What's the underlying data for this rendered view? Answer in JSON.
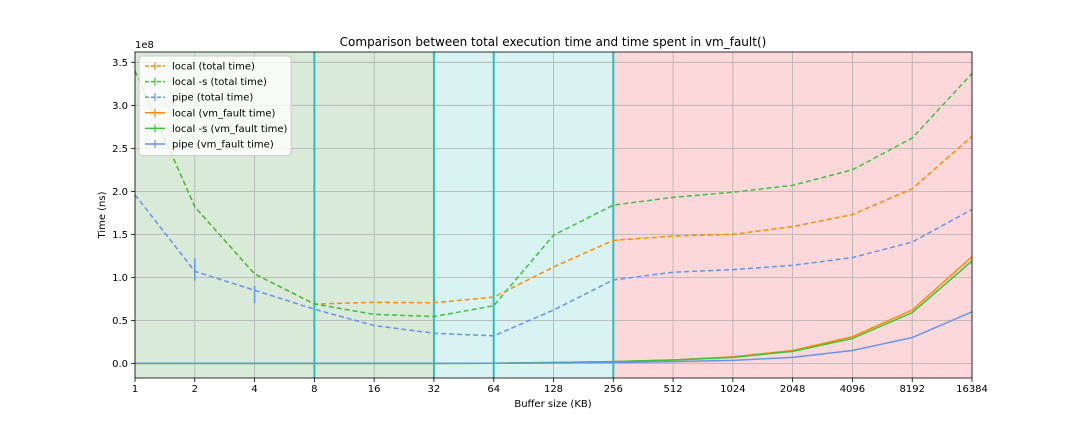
{
  "chart_data": {
    "type": "line",
    "title": "Comparison between total execution time and time spent in vm_fault()",
    "xlabel": "Buffer size (KB)",
    "ylabel": "Time (ns)",
    "y_scale_note": "1e8",
    "x_scale": "log2",
    "x": [
      1,
      2,
      4,
      8,
      16,
      32,
      64,
      128,
      256,
      512,
      1024,
      2048,
      4096,
      8192,
      16384
    ],
    "x_tick_labels": [
      "1",
      "2",
      "4",
      "8",
      "16",
      "32",
      "64",
      "128",
      "256",
      "512",
      "1024",
      "2048",
      "4096",
      "8192",
      "16384"
    ],
    "xlim": [
      1,
      16384
    ],
    "ylim": [
      -17000000,
      362000000
    ],
    "y_ticks": [
      0,
      50000000,
      100000000,
      150000000,
      200000000,
      250000000,
      300000000,
      350000000
    ],
    "y_tick_labels": [
      "0.0",
      "0.5",
      "1.0",
      "1.5",
      "2.0",
      "2.5",
      "3.0",
      "3.5"
    ],
    "grid": true,
    "legend_position": "top-left",
    "regions": [
      {
        "x_start": 1,
        "x_end": 32,
        "color": "#d9ead9"
      },
      {
        "x_start": 32,
        "x_end": 256,
        "color": "#d9f3f3"
      },
      {
        "x_start": 256,
        "x_end": 16384,
        "color": "#fdd8da"
      }
    ],
    "vertical_lines": [
      8,
      32,
      64,
      256
    ],
    "vertical_line_color": "#2bbfbf",
    "series": [
      {
        "name": "local (total time)",
        "color": "#ff8c00",
        "style": "dashed",
        "values": [
          340000000,
          182000000,
          104000000,
          69000000,
          71000000,
          70500000,
          77000000,
          112000000,
          143000000,
          148000000,
          150000000,
          159000000,
          173000000,
          203000000,
          264000000
        ]
      },
      {
        "name": "local -s (total time)",
        "color": "#3cc23c",
        "style": "dashed",
        "values": [
          340000000,
          182000000,
          104000000,
          69000000,
          57000000,
          54500000,
          67000000,
          149000000,
          184000000,
          193000000,
          199000000,
          207000000,
          225000000,
          262000000,
          337000000
        ]
      },
      {
        "name": "pipe (total time)",
        "color": "#6495ed",
        "style": "dashed",
        "values": [
          196000000,
          107000000,
          85000000,
          63000000,
          44000000,
          35000000,
          32000000,
          62000000,
          97000000,
          106000000,
          109000000,
          114000000,
          123000000,
          141000000,
          179000000
        ]
      },
      {
        "name": "local (vm_fault time)",
        "color": "#ff8c00",
        "style": "solid",
        "values": [
          0,
          0,
          0,
          0,
          0,
          0,
          200000,
          1000000,
          2000000,
          4000000,
          7500000,
          15000000,
          31000000,
          62000000,
          124000000
        ]
      },
      {
        "name": "local -s (vm_fault time)",
        "color": "#3cc23c",
        "style": "solid",
        "values": [
          0,
          0,
          0,
          0,
          0,
          0,
          200000,
          1000000,
          2000000,
          4000000,
          7000000,
          14000000,
          29000000,
          59000000,
          119000000
        ]
      },
      {
        "name": "pipe (vm_fault time)",
        "color": "#6495ed",
        "style": "solid",
        "values": [
          0,
          0,
          0,
          0,
          0,
          0,
          100000,
          500000,
          1000000,
          2000000,
          3500000,
          7000000,
          15000000,
          30000000,
          60000000
        ]
      }
    ],
    "error_bars": [
      {
        "series": "pipe (total time)",
        "x": 2,
        "low": 96000000,
        "high": 122000000
      },
      {
        "series": "pipe (total time)",
        "x": 4,
        "low": 70000000,
        "high": 90000000
      }
    ]
  }
}
